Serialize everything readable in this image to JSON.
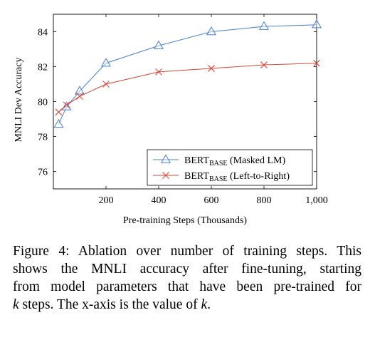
{
  "chart_data": {
    "type": "line",
    "xlabel": "Pre-training Steps (Thousands)",
    "ylabel": "MNLI Dev Accuracy",
    "xlim": [
      0,
      1000
    ],
    "ylim": [
      75,
      85
    ],
    "x_ticks": [
      200,
      400,
      600,
      800,
      1000
    ],
    "x_tick_labels": [
      "200",
      "400",
      "600",
      "800",
      "1,000"
    ],
    "y_ticks": [
      76,
      78,
      80,
      82,
      84
    ],
    "grid": false,
    "legend_position": "bottom-right",
    "series": [
      {
        "name_main": "BERT",
        "name_sub": "BASE",
        "name_rest": " (Masked LM)",
        "color": "#4a7fd1",
        "marker": "triangle",
        "x": [
          20,
          50,
          100,
          200,
          400,
          600,
          800,
          1000
        ],
        "y": [
          78.7,
          79.7,
          80.6,
          82.2,
          83.2,
          84.0,
          84.3,
          84.4
        ]
      },
      {
        "name_main": "BERT",
        "name_sub": "BASE",
        "name_rest": " (Left-to-Right)",
        "color": "#d9463a",
        "marker": "cross",
        "x": [
          20,
          50,
          100,
          200,
          400,
          600,
          800,
          1000
        ],
        "y": [
          79.4,
          79.8,
          80.3,
          81.0,
          81.7,
          81.9,
          82.1,
          82.2
        ]
      }
    ]
  },
  "caption": {
    "line1": "Figure 4: Ablation over number of training steps. This",
    "line2": "shows the MNLI accuracy after fine-tuning, starting",
    "line3": "from model parameters that have been pre-trained for",
    "line4_k": "k",
    "line4_rest": " steps. The x-axis is the value of ",
    "line4_k2": "k",
    "line4_end": "."
  }
}
